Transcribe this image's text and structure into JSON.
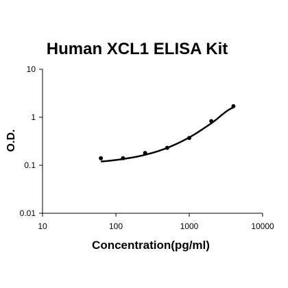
{
  "chart_data": {
    "type": "scatter",
    "title": "Human XCL1 ELISA Kit",
    "xlabel": "Concentration(pg/ml)",
    "ylabel": "O.D.",
    "xscale": "log",
    "yscale": "log",
    "xlim": [
      10,
      10000
    ],
    "ylim": [
      0.01,
      10
    ],
    "x_ticks": [
      "10",
      "100",
      "1000",
      "10000"
    ],
    "y_ticks": [
      "0.01",
      "0.1",
      "1",
      "10"
    ],
    "grid": false,
    "legend": "none",
    "points": [
      {
        "x": 62.5,
        "y": 0.14
      },
      {
        "x": 125,
        "y": 0.14
      },
      {
        "x": 250,
        "y": 0.18
      },
      {
        "x": 500,
        "y": 0.23
      },
      {
        "x": 1000,
        "y": 0.37
      },
      {
        "x": 2000,
        "y": 0.83
      },
      {
        "x": 4000,
        "y": 1.7
      }
    ],
    "fit_curve": [
      {
        "x": 62.5,
        "y": 0.12
      },
      {
        "x": 125,
        "y": 0.135
      },
      {
        "x": 250,
        "y": 0.165
      },
      {
        "x": 500,
        "y": 0.23
      },
      {
        "x": 1000,
        "y": 0.38
      },
      {
        "x": 2000,
        "y": 0.75
      },
      {
        "x": 4000,
        "y": 1.6
      }
    ],
    "colors": {
      "marker": "#000000",
      "line": "#000000",
      "axis": "#000000"
    }
  }
}
